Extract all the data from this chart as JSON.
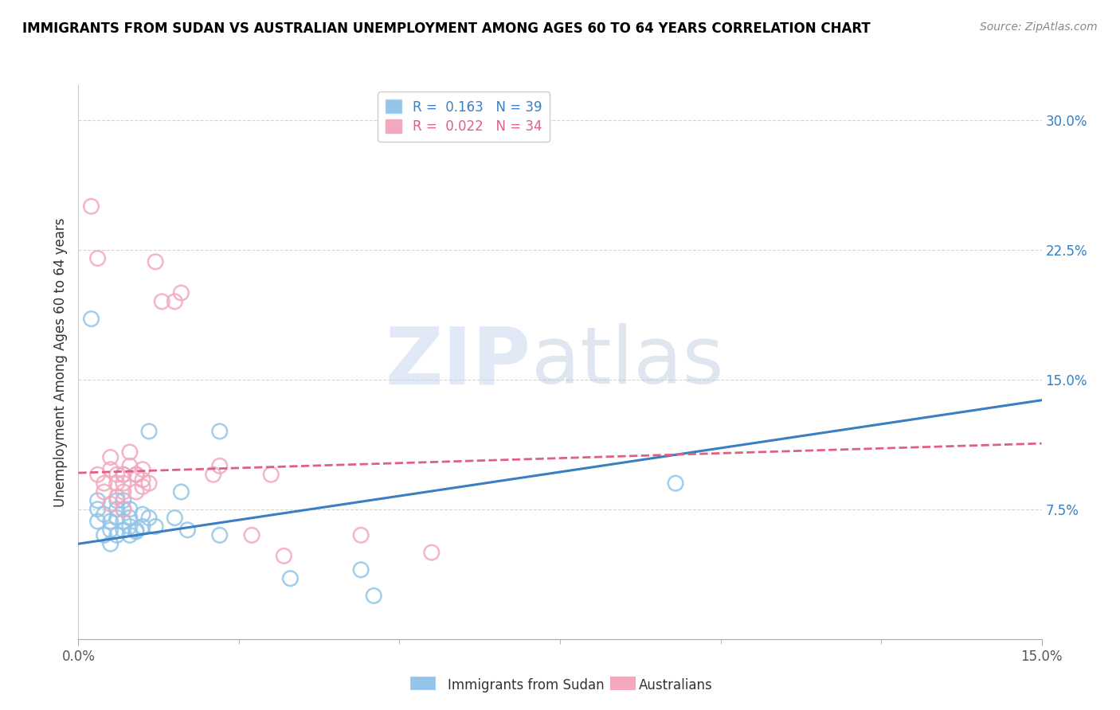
{
  "title": "IMMIGRANTS FROM SUDAN VS AUSTRALIAN UNEMPLOYMENT AMONG AGES 60 TO 64 YEARS CORRELATION CHART",
  "source_text": "Source: ZipAtlas.com",
  "ylabel": "Unemployment Among Ages 60 to 64 years",
  "xlabel_blue": "Immigrants from Sudan",
  "xlabel_pink": "Australians",
  "xlim": [
    0.0,
    0.15
  ],
  "ylim": [
    0.0,
    0.32
  ],
  "yticks": [
    0.075,
    0.15,
    0.225,
    0.3
  ],
  "ytick_labels": [
    "7.5%",
    "15.0%",
    "22.5%",
    "30.0%"
  ],
  "xticks": [
    0.0,
    0.15
  ],
  "xtick_labels": [
    "0.0%",
    "15.0%"
  ],
  "legend_r_blue": "R =  0.163",
  "legend_n_blue": "N = 39",
  "legend_r_pink": "R =  0.022",
  "legend_n_pink": "N = 34",
  "blue_color": "#92c5e8",
  "pink_color": "#f4a8be",
  "blue_line_color": "#3a7fc1",
  "pink_line_color": "#e06080",
  "watermark_color": "#dde8f5",
  "blue_line_start_y": 0.055,
  "blue_line_end_y": 0.138,
  "pink_line_start_y": 0.096,
  "pink_line_end_y": 0.113,
  "blue_scatter_x": [
    0.002,
    0.003,
    0.003,
    0.003,
    0.004,
    0.004,
    0.005,
    0.005,
    0.005,
    0.006,
    0.006,
    0.006,
    0.006,
    0.007,
    0.007,
    0.007,
    0.007,
    0.007,
    0.008,
    0.008,
    0.008,
    0.008,
    0.009,
    0.009,
    0.009,
    0.01,
    0.01,
    0.011,
    0.011,
    0.012,
    0.015,
    0.016,
    0.017,
    0.022,
    0.022,
    0.033,
    0.044,
    0.046,
    0.093
  ],
  "blue_scatter_y": [
    0.185,
    0.068,
    0.075,
    0.08,
    0.06,
    0.072,
    0.063,
    0.068,
    0.055,
    0.06,
    0.075,
    0.08,
    0.07,
    0.068,
    0.075,
    0.08,
    0.063,
    0.095,
    0.07,
    0.06,
    0.065,
    0.075,
    0.062,
    0.063,
    0.095,
    0.065,
    0.072,
    0.12,
    0.07,
    0.065,
    0.07,
    0.085,
    0.063,
    0.06,
    0.12,
    0.035,
    0.04,
    0.025,
    0.09
  ],
  "pink_scatter_x": [
    0.002,
    0.003,
    0.004,
    0.004,
    0.005,
    0.005,
    0.005,
    0.006,
    0.006,
    0.006,
    0.007,
    0.007,
    0.007,
    0.007,
    0.008,
    0.008,
    0.009,
    0.009,
    0.01,
    0.01,
    0.01,
    0.011,
    0.012,
    0.013,
    0.015,
    0.016,
    0.021,
    0.022,
    0.027,
    0.03,
    0.032,
    0.044,
    0.055,
    0.003
  ],
  "pink_scatter_y": [
    0.25,
    0.095,
    0.085,
    0.09,
    0.098,
    0.105,
    0.078,
    0.09,
    0.095,
    0.082,
    0.085,
    0.09,
    0.095,
    0.075,
    0.1,
    0.108,
    0.095,
    0.085,
    0.088,
    0.092,
    0.098,
    0.09,
    0.218,
    0.195,
    0.195,
    0.2,
    0.095,
    0.1,
    0.06,
    0.095,
    0.048,
    0.06,
    0.05,
    0.22
  ]
}
